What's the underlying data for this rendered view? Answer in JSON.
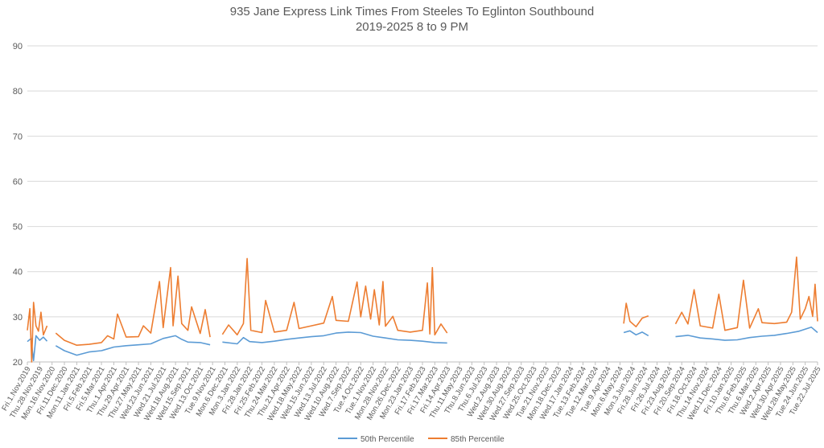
{
  "chart_data": {
    "type": "line",
    "title": "935 Jane Express Link Times From Steeles To Eglinton Southbound",
    "subtitle": "2019-2025 8 to 9 PM",
    "xlabel": "",
    "ylabel": "",
    "ylim": [
      20,
      90
    ],
    "yticks": [
      "20",
      "30",
      "40",
      "50",
      "60",
      "70",
      "80",
      "90"
    ],
    "grid": true,
    "legend_position": "bottom",
    "x_tick_labels": [
      "Fri.1.Nov.2019",
      "Thu.28.Nov.2019",
      "Mon.16.Nov.2020",
      "Fri.11.Dec.2020",
      "Mon.11.Jan.2021",
      "Fri.5.Feb.2021",
      "Fri.5.Mar.2021",
      "Thu.1.Apr.2021",
      "Thu.29.Apr.2021",
      "Thu.27.May.2021",
      "Wed.23.Jun.2021",
      "Wed.21.Jul.2021",
      "Wed.18.Aug.2021",
      "Wed.15.Sep.2021",
      "Wed.13.Oct.2021",
      "Tue.9.Nov.2021",
      "Mon.6.Dec.2021",
      "Mon.3.Jan.2022",
      "Fri.28.Jan.2022",
      "Fri.25.Feb.2022",
      "Thu.24.Mar.2022",
      "Thu.21.Apr.2022",
      "Wed.18.May.2022",
      "Wed.15.Jun.2022",
      "Wed.13.Jul.2022",
      "Wed.10.Aug.2022",
      "Wed.7.Sep.2022",
      "Tue.4.Oct.2022",
      "Tue.1.Nov.2022",
      "Mon.28.Nov.2022",
      "Mon.26.Dec.2022",
      "Mon.23.Jan.2023",
      "Fri.17.Feb.2023",
      "Fri.17.Mar.2023",
      "Fri.14.Apr.2023",
      "Thu.11.May.2023",
      "Thu.8.Jun.2023",
      "Thu.6.Jul.2023",
      "Wed.2.Aug.2023",
      "Wed.30.Aug.2023",
      "Wed.27.Sep.2023",
      "Wed.25.Oct.2023",
      "Tue.21.Nov.2023",
      "Mon.18.Dec.2023",
      "Wed.17.Jan.2024",
      "Tue.13.Feb.2024",
      "Tue.12.Mar.2024",
      "Tue.9.Apr.2024",
      "Mon.6.May.2024",
      "Mon.3.Jun.2024",
      "Fri.28.Jun.2024",
      "Fri.26.Jul.2024",
      "Fri.23.Aug.2024",
      "Fri.20.Sep.2024",
      "Fri.18.Oct.2024",
      "Thu.14.Nov.2024",
      "Wed.11.Dec.2024",
      "Fri.10.Jan.2025",
      "Thu.6.Feb.2025",
      "Thu.6.Mar.2025",
      "Wed.2.Apr.2025",
      "Wed.30.Apr.2025",
      "Wed.28.May.2025",
      "Tue.24.Jun.2025",
      "Tue.22.Jul.2025"
    ],
    "x_range": [
      0,
      64
    ],
    "series": [
      {
        "name": "50th Percentile",
        "color": "#5b9bd5",
        "segments": [
          [
            [
              0,
              24.5
            ],
            [
              0.3,
              25.2
            ],
            [
              0.5,
              20.3
            ],
            [
              0.7,
              25.8
            ],
            [
              1.0,
              24.8
            ],
            [
              1.3,
              25.5
            ],
            [
              1.6,
              24.6
            ]
          ],
          [
            [
              2.3,
              23.6
            ],
            [
              3,
              22.5
            ],
            [
              4,
              21.5
            ],
            [
              5,
              22.2
            ],
            [
              6,
              22.5
            ],
            [
              7,
              23.3
            ],
            [
              8,
              23.6
            ],
            [
              9,
              23.8
            ],
            [
              10,
              24.0
            ],
            [
              11,
              25.2
            ],
            [
              12,
              25.8
            ],
            [
              12.5,
              25.0
            ],
            [
              13,
              24.4
            ],
            [
              14,
              24.3
            ],
            [
              14.8,
              23.8
            ]
          ],
          [
            [
              15.8,
              24.4
            ],
            [
              17,
              24.0
            ],
            [
              17.5,
              25.4
            ],
            [
              18,
              24.5
            ],
            [
              19,
              24.3
            ],
            [
              20,
              24.6
            ],
            [
              21,
              25.0
            ],
            [
              22,
              25.3
            ],
            [
              23,
              25.6
            ],
            [
              24,
              25.8
            ],
            [
              25,
              26.4
            ],
            [
              26,
              26.6
            ],
            [
              27,
              26.5
            ],
            [
              28,
              25.7
            ],
            [
              29,
              25.3
            ],
            [
              30,
              24.9
            ],
            [
              31,
              24.8
            ],
            [
              32,
              24.6
            ],
            [
              33,
              24.3
            ],
            [
              34,
              24.2
            ]
          ],
          [
            [
              48.3,
              26.5
            ],
            [
              48.8,
              26.9
            ],
            [
              49.3,
              26.0
            ],
            [
              49.8,
              26.6
            ],
            [
              50.3,
              25.8
            ]
          ],
          [
            [
              52.5,
              25.6
            ],
            [
              53.5,
              25.9
            ],
            [
              54.5,
              25.3
            ],
            [
              55.5,
              25.1
            ],
            [
              56.5,
              24.8
            ],
            [
              57.5,
              24.9
            ],
            [
              58.5,
              25.4
            ],
            [
              59.5,
              25.7
            ],
            [
              60.5,
              25.9
            ],
            [
              61.5,
              26.3
            ],
            [
              62.5,
              26.8
            ],
            [
              63.5,
              27.7
            ],
            [
              64,
              26.5
            ]
          ]
        ]
      },
      {
        "name": "85th Percentile",
        "color": "#ed7d31",
        "segments": [
          [
            [
              0,
              27.0
            ],
            [
              0.2,
              31.8
            ],
            [
              0.35,
              20.0
            ],
            [
              0.5,
              33.2
            ],
            [
              0.7,
              28.0
            ],
            [
              0.9,
              26.8
            ],
            [
              1.1,
              31.0
            ],
            [
              1.3,
              26.0
            ],
            [
              1.6,
              28.0
            ]
          ],
          [
            [
              2.3,
              26.4
            ],
            [
              3,
              24.8
            ],
            [
              4,
              23.7
            ],
            [
              5,
              23.9
            ],
            [
              6,
              24.3
            ],
            [
              6.5,
              25.8
            ],
            [
              7,
              25.1
            ],
            [
              7.3,
              30.6
            ],
            [
              8,
              25.5
            ],
            [
              9,
              25.6
            ],
            [
              9.4,
              28.0
            ],
            [
              10,
              26.4
            ],
            [
              10.7,
              37.8
            ],
            [
              11,
              27.6
            ],
            [
              11.6,
              40.9
            ],
            [
              11.8,
              28.0
            ],
            [
              12.2,
              39.0
            ],
            [
              12.5,
              28.5
            ],
            [
              13,
              27.0
            ],
            [
              13.3,
              32.2
            ],
            [
              14,
              26.3
            ],
            [
              14.4,
              31.6
            ],
            [
              14.8,
              25.5
            ]
          ],
          [
            [
              15.8,
              26.1
            ],
            [
              16.3,
              28.2
            ],
            [
              17,
              26.0
            ],
            [
              17.5,
              28.5
            ],
            [
              17.8,
              42.9
            ],
            [
              18.1,
              27.0
            ],
            [
              19,
              26.5
            ],
            [
              19.3,
              33.6
            ],
            [
              20,
              26.6
            ],
            [
              21,
              27.0
            ],
            [
              21.6,
              33.2
            ],
            [
              22,
              27.4
            ],
            [
              23,
              28.0
            ],
            [
              24,
              28.6
            ],
            [
              24.7,
              34.5
            ],
            [
              25,
              29.2
            ],
            [
              26,
              29.0
            ],
            [
              26.7,
              37.7
            ],
            [
              27,
              30.0
            ],
            [
              27.4,
              36.8
            ],
            [
              27.8,
              29.5
            ],
            [
              28.1,
              36.0
            ],
            [
              28.5,
              28.2
            ],
            [
              28.8,
              37.8
            ],
            [
              29,
              27.9
            ],
            [
              29.6,
              30.1
            ],
            [
              30,
              27.0
            ],
            [
              31,
              26.6
            ],
            [
              32,
              27.0
            ],
            [
              32.4,
              37.5
            ],
            [
              32.6,
              26.2
            ],
            [
              32.8,
              40.9
            ],
            [
              33,
              26.0
            ],
            [
              33.5,
              28.4
            ],
            [
              34,
              26.4
            ]
          ],
          [
            [
              48.3,
              28.5
            ],
            [
              48.5,
              33.0
            ],
            [
              48.8,
              29.0
            ],
            [
              49.3,
              27.8
            ],
            [
              49.8,
              29.7
            ],
            [
              50.3,
              30.2
            ]
          ],
          [
            [
              52.5,
              28.4
            ],
            [
              53,
              31.0
            ],
            [
              53.5,
              28.4
            ],
            [
              54,
              36.0
            ],
            [
              54.5,
              28.0
            ],
            [
              55.5,
              27.5
            ],
            [
              56,
              35.0
            ],
            [
              56.5,
              27.0
            ],
            [
              57.5,
              27.6
            ],
            [
              58,
              38.1
            ],
            [
              58.5,
              27.5
            ],
            [
              59.2,
              31.8
            ],
            [
              59.5,
              28.7
            ],
            [
              60.5,
              28.5
            ],
            [
              61.5,
              28.8
            ],
            [
              61.9,
              31.0
            ],
            [
              62.3,
              43.2
            ],
            [
              62.6,
              29.5
            ],
            [
              63,
              31.8
            ],
            [
              63.3,
              34.5
            ],
            [
              63.6,
              30.1
            ],
            [
              63.8,
              37.2
            ],
            [
              64,
              29.0
            ]
          ]
        ]
      }
    ]
  }
}
